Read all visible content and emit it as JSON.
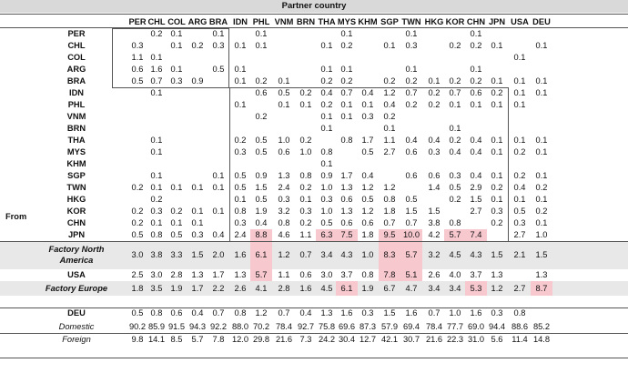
{
  "title": "Partner country",
  "from_label": "From",
  "columns": [
    "PER",
    "CHL",
    "COL",
    "ARG",
    "BRA",
    "IDN",
    "PHL",
    "VNM",
    "BRN",
    "THA",
    "MYS",
    "KHM",
    "SGP",
    "TWN",
    "HKG",
    "KOR",
    "CHN",
    "JPN",
    "USA",
    "DEU"
  ],
  "rows": [
    {
      "label": "PER",
      "style": "b",
      "cells": [
        "",
        "0.2",
        "0.1",
        "",
        "0.1",
        "",
        "0.1",
        "",
        "",
        "",
        "0.1",
        "",
        "",
        "0.1",
        "",
        "",
        "0.1",
        "",
        "",
        ""
      ]
    },
    {
      "label": "CHL",
      "style": "b",
      "cells": [
        "0.3",
        "",
        "0.1",
        "0.2",
        "0.3",
        "0.1",
        "0.1",
        "",
        "",
        "0.1",
        "0.2",
        "",
        "0.1",
        "0.3",
        "",
        "0.2",
        "0.2",
        "0.1",
        "",
        "0.1"
      ]
    },
    {
      "label": "COL",
      "style": "b",
      "cells": [
        "1.1",
        "0.1",
        "",
        "",
        "",
        "",
        "",
        "",
        "",
        "",
        "",
        "",
        "",
        "",
        "",
        "",
        "",
        "",
        "0.1",
        ""
      ]
    },
    {
      "label": "ARG",
      "style": "b",
      "cells": [
        "0.6",
        "1.6",
        "0.1",
        "",
        "0.5",
        "0.1",
        "",
        "",
        "",
        "0.1",
        "0.1",
        "",
        "",
        "0.1",
        "",
        "",
        "0.1",
        "",
        "",
        ""
      ]
    },
    {
      "label": "BRA",
      "style": "b",
      "cells": [
        "0.5",
        "0.7",
        "0.3",
        "0.9",
        "",
        "0.1",
        "0.2",
        "0.1",
        "",
        "0.2",
        "0.2",
        "",
        "0.2",
        "0.2",
        "0.1",
        "0.2",
        "0.2",
        "0.1",
        "0.1",
        "0.1"
      ]
    },
    {
      "label": "IDN",
      "style": "b",
      "cells": [
        "",
        "0.1",
        "",
        "",
        "",
        "",
        "0.6",
        "0.5",
        "0.2",
        "0.4",
        "0.7",
        "0.4",
        "1.2",
        "0.7",
        "0.2",
        "0.7",
        "0.6",
        "0.2",
        "0.1",
        "0.1"
      ]
    },
    {
      "label": "PHL",
      "style": "b",
      "cells": [
        "",
        "",
        "",
        "",
        "",
        "0.1",
        "",
        "0.1",
        "0.1",
        "0.2",
        "0.1",
        "0.1",
        "0.4",
        "0.2",
        "0.2",
        "0.1",
        "0.1",
        "0.1",
        "0.1",
        ""
      ]
    },
    {
      "label": "VNM",
      "style": "b",
      "cells": [
        "",
        "",
        "",
        "",
        "",
        "",
        "0.2",
        "",
        "",
        "0.1",
        "0.1",
        "0.3",
        "0.2",
        "",
        "",
        "",
        "",
        "",
        "",
        ""
      ]
    },
    {
      "label": "BRN",
      "style": "b",
      "cells": [
        "",
        "",
        "",
        "",
        "",
        "",
        "",
        "",
        "",
        "0.1",
        "",
        "",
        "0.1",
        "",
        "",
        "0.1",
        "",
        "",
        "",
        ""
      ]
    },
    {
      "label": "THA",
      "style": "b",
      "cells": [
        "",
        "0.1",
        "",
        "",
        "",
        "0.2",
        "0.5",
        "1.0",
        "0.2",
        "",
        "0.8",
        "1.7",
        "1.1",
        "0.4",
        "0.4",
        "0.2",
        "0.4",
        "0.1",
        "0.1",
        "0.1"
      ]
    },
    {
      "label": "MYS",
      "style": "b",
      "cells": [
        "",
        "0.1",
        "",
        "",
        "",
        "0.3",
        "0.5",
        "0.6",
        "1.0",
        "0.8",
        "",
        "0.5",
        "2.7",
        "0.6",
        "0.3",
        "0.4",
        "0.4",
        "0.1",
        "0.2",
        "0.1"
      ]
    },
    {
      "label": "KHM",
      "style": "b",
      "cells": [
        "",
        "",
        "",
        "",
        "",
        "",
        "",
        "",
        "",
        "0.1",
        "",
        "",
        "",
        "",
        "",
        "",
        "",
        "",
        "",
        ""
      ]
    },
    {
      "label": "SGP",
      "style": "b",
      "cells": [
        "",
        "0.1",
        "",
        "",
        "0.1",
        "0.5",
        "0.9",
        "1.3",
        "0.8",
        "0.9",
        "1.7",
        "0.4",
        "",
        "0.6",
        "0.6",
        "0.3",
        "0.4",
        "0.1",
        "0.2",
        "0.1"
      ]
    },
    {
      "label": "TWN",
      "style": "b",
      "cells": [
        "0.2",
        "0.1",
        "0.1",
        "0.1",
        "0.1",
        "0.5",
        "1.5",
        "2.4",
        "0.2",
        "1.0",
        "1.3",
        "1.2",
        "1.2",
        "",
        "1.4",
        "0.5",
        "2.9",
        "0.2",
        "0.4",
        "0.2"
      ]
    },
    {
      "label": "HKG",
      "style": "b",
      "cells": [
        "",
        "0.2",
        "",
        "",
        "",
        "0.1",
        "0.5",
        "0.3",
        "0.1",
        "0.3",
        "0.6",
        "0.5",
        "0.8",
        "0.5",
        "",
        "0.2",
        "1.5",
        "0.1",
        "0.1",
        "0.1"
      ]
    },
    {
      "label": "KOR",
      "style": "b",
      "cells": [
        "0.2",
        "0.3",
        "0.2",
        "0.1",
        "0.1",
        "0.8",
        "1.9",
        "3.2",
        "0.3",
        "1.0",
        "1.3",
        "1.2",
        "1.8",
        "1.5",
        "1.5",
        "",
        "2.7",
        "0.3",
        "0.5",
        "0.2"
      ]
    },
    {
      "label": "CHN",
      "style": "b",
      "cells": [
        "0.2",
        "0.1",
        "0.1",
        "0.1",
        "",
        "0.3",
        "0.4",
        "0.8",
        "0.2",
        "0.5",
        "0.6",
        "0.6",
        "0.7",
        "0.7",
        "3.8",
        "0.8",
        "",
        "0.2",
        "0.3",
        "0.1"
      ]
    },
    {
      "label": "JPN",
      "style": "b",
      "cells": [
        "0.5",
        "0.8",
        "0.5",
        "0.3",
        "0.4",
        "2.4",
        "8.8",
        "4.6",
        "1.1",
        "6.3",
        "7.5",
        "1.8",
        "9.5",
        "10.0",
        "4.2",
        "5.7",
        "7.4",
        "",
        "2.7",
        "1.0"
      ]
    },
    {
      "label": "Factory North America",
      "style": "bi",
      "cells": [
        "3.0",
        "3.8",
        "3.3",
        "1.5",
        "2.0",
        "1.6",
        "6.1",
        "1.2",
        "0.7",
        "3.4",
        "4.3",
        "1.0",
        "8.3",
        "5.7",
        "3.2",
        "4.5",
        "4.3",
        "1.5",
        "2.1",
        "1.5"
      ]
    },
    {
      "label": "USA",
      "style": "b",
      "cells": [
        "2.5",
        "3.0",
        "2.8",
        "1.3",
        "1.7",
        "1.3",
        "5.7",
        "1.1",
        "0.6",
        "3.0",
        "3.7",
        "0.8",
        "7.8",
        "5.1",
        "2.6",
        "4.0",
        "3.7",
        "1.3",
        "",
        "1.3"
      ]
    },
    {
      "label": "Factory Europe",
      "style": "bi",
      "cells": [
        "1.8",
        "3.5",
        "1.9",
        "1.7",
        "2.2",
        "2.6",
        "4.1",
        "2.8",
        "1.6",
        "4.5",
        "6.1",
        "1.9",
        "6.7",
        "4.7",
        "3.4",
        "3.4",
        "5.3",
        "1.2",
        "2.7",
        "8.7"
      ]
    },
    {
      "label": "DEU",
      "style": "b",
      "cells": [
        "0.5",
        "0.8",
        "0.6",
        "0.4",
        "0.7",
        "0.8",
        "1.2",
        "0.7",
        "0.4",
        "1.3",
        "1.6",
        "0.3",
        "1.5",
        "1.6",
        "0.7",
        "1.0",
        "1.6",
        "0.3",
        "0.8",
        ""
      ]
    },
    {
      "label": "Domestic",
      "style": "i",
      "cells": [
        "90.2",
        "85.9",
        "91.5",
        "94.3",
        "92.2",
        "88.0",
        "70.2",
        "78.4",
        "92.7",
        "75.8",
        "69.6",
        "87.3",
        "57.9",
        "69.4",
        "78.4",
        "77.7",
        "69.0",
        "94.4",
        "88.6",
        "85.2"
      ]
    },
    {
      "label": "Foreign",
      "style": "i",
      "cells": [
        "9.8",
        "14.1",
        "8.5",
        "5.7",
        "7.8",
        "12.0",
        "29.8",
        "21.6",
        "7.3",
        "24.2",
        "30.4",
        "12.7",
        "42.1",
        "30.7",
        "21.6",
        "22.3",
        "31.0",
        "5.6",
        "11.4",
        "14.8"
      ]
    }
  ],
  "highlights": [
    [
      17,
      6
    ],
    [
      17,
      9
    ],
    [
      17,
      10
    ],
    [
      17,
      12
    ],
    [
      17,
      13
    ],
    [
      17,
      15
    ],
    [
      17,
      16
    ],
    [
      18,
      6
    ],
    [
      18,
      12
    ],
    [
      18,
      13
    ],
    [
      19,
      6
    ],
    [
      19,
      12
    ],
    [
      19,
      13
    ],
    [
      20,
      10
    ],
    [
      20,
      16
    ],
    [
      20,
      19
    ]
  ],
  "colors": {
    "highlight": "#f8c8cf",
    "band": "#e8e8e8",
    "header": "#d9d9d9"
  }
}
